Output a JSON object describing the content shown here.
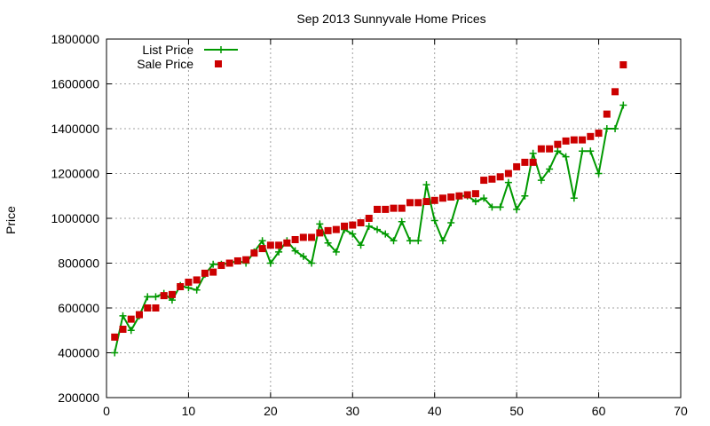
{
  "chart_data": {
    "type": "line",
    "title": "Sep 2013 Sunnyvale Home Prices",
    "xlabel": "",
    "ylabel": "Price",
    "xlim": [
      0,
      70
    ],
    "ylim": [
      200000,
      1800000
    ],
    "x_ticks": [
      0,
      10,
      20,
      30,
      40,
      50,
      60,
      70
    ],
    "y_ticks": [
      200000,
      400000,
      600000,
      800000,
      1000000,
      1200000,
      1400000,
      1600000,
      1800000
    ],
    "grid": true,
    "legend_position": "top-left",
    "series": [
      {
        "name": "List Price",
        "style": "line+cross",
        "color": "#009900",
        "points": [
          [
            1,
            400000
          ],
          [
            2,
            565000
          ],
          [
            3,
            500000
          ],
          [
            4,
            565000
          ],
          [
            5,
            650000
          ],
          [
            6,
            650000
          ],
          [
            7,
            665000
          ],
          [
            8,
            635000
          ],
          [
            9,
            700000
          ],
          [
            10,
            690000
          ],
          [
            11,
            680000
          ],
          [
            12,
            750000
          ],
          [
            13,
            795000
          ],
          [
            14,
            795000
          ],
          [
            15,
            800000
          ],
          [
            16,
            810000
          ],
          [
            17,
            800000
          ],
          [
            18,
            850000
          ],
          [
            19,
            900000
          ],
          [
            20,
            800000
          ],
          [
            21,
            850000
          ],
          [
            22,
            900000
          ],
          [
            23,
            855000
          ],
          [
            24,
            830000
          ],
          [
            25,
            800000
          ],
          [
            26,
            975000
          ],
          [
            27,
            890000
          ],
          [
            28,
            850000
          ],
          [
            29,
            950000
          ],
          [
            30,
            930000
          ],
          [
            31,
            880000
          ],
          [
            32,
            965000
          ],
          [
            33,
            950000
          ],
          [
            34,
            930000
          ],
          [
            35,
            900000
          ],
          [
            36,
            985000
          ],
          [
            37,
            900000
          ],
          [
            38,
            900000
          ],
          [
            39,
            1150000
          ],
          [
            40,
            990000
          ],
          [
            41,
            900000
          ],
          [
            42,
            980000
          ],
          [
            43,
            1100000
          ],
          [
            44,
            1100000
          ],
          [
            45,
            1075000
          ],
          [
            46,
            1090000
          ],
          [
            47,
            1050000
          ],
          [
            48,
            1050000
          ],
          [
            49,
            1160000
          ],
          [
            50,
            1040000
          ],
          [
            51,
            1100000
          ],
          [
            52,
            1290000
          ],
          [
            53,
            1170000
          ],
          [
            54,
            1220000
          ],
          [
            55,
            1300000
          ],
          [
            56,
            1275000
          ],
          [
            57,
            1090000
          ],
          [
            58,
            1300000
          ],
          [
            59,
            1300000
          ],
          [
            60,
            1200000
          ],
          [
            61,
            1400000
          ],
          [
            62,
            1400000
          ],
          [
            63,
            1505000
          ]
        ]
      },
      {
        "name": "Sale Price",
        "style": "square-markers",
        "color": "#cc0000",
        "points": [
          [
            1,
            470000
          ],
          [
            2,
            505000
          ],
          [
            3,
            550000
          ],
          [
            4,
            570000
          ],
          [
            5,
            600000
          ],
          [
            6,
            600000
          ],
          [
            7,
            655000
          ],
          [
            8,
            660000
          ],
          [
            9,
            695000
          ],
          [
            10,
            715000
          ],
          [
            11,
            725000
          ],
          [
            12,
            755000
          ],
          [
            13,
            760000
          ],
          [
            14,
            790000
          ],
          [
            15,
            800000
          ],
          [
            16,
            810000
          ],
          [
            17,
            815000
          ],
          [
            18,
            845000
          ],
          [
            19,
            865000
          ],
          [
            20,
            880000
          ],
          [
            21,
            880000
          ],
          [
            22,
            890000
          ],
          [
            23,
            905000
          ],
          [
            24,
            915000
          ],
          [
            25,
            915000
          ],
          [
            26,
            935000
          ],
          [
            27,
            945000
          ],
          [
            28,
            950000
          ],
          [
            29,
            965000
          ],
          [
            30,
            970000
          ],
          [
            31,
            980000
          ],
          [
            32,
            1000000
          ],
          [
            33,
            1040000
          ],
          [
            34,
            1040000
          ],
          [
            35,
            1045000
          ],
          [
            36,
            1045000
          ],
          [
            37,
            1070000
          ],
          [
            38,
            1070000
          ],
          [
            39,
            1075000
          ],
          [
            40,
            1080000
          ],
          [
            41,
            1090000
          ],
          [
            42,
            1095000
          ],
          [
            43,
            1100000
          ],
          [
            44,
            1105000
          ],
          [
            45,
            1110000
          ],
          [
            46,
            1170000
          ],
          [
            47,
            1175000
          ],
          [
            48,
            1185000
          ],
          [
            49,
            1200000
          ],
          [
            50,
            1230000
          ],
          [
            51,
            1250000
          ],
          [
            52,
            1250000
          ],
          [
            53,
            1310000
          ],
          [
            54,
            1310000
          ],
          [
            55,
            1330000
          ],
          [
            56,
            1345000
          ],
          [
            57,
            1350000
          ],
          [
            58,
            1350000
          ],
          [
            59,
            1365000
          ],
          [
            60,
            1380000
          ],
          [
            61,
            1465000
          ],
          [
            62,
            1565000
          ],
          [
            63,
            1685000
          ]
        ]
      }
    ]
  }
}
